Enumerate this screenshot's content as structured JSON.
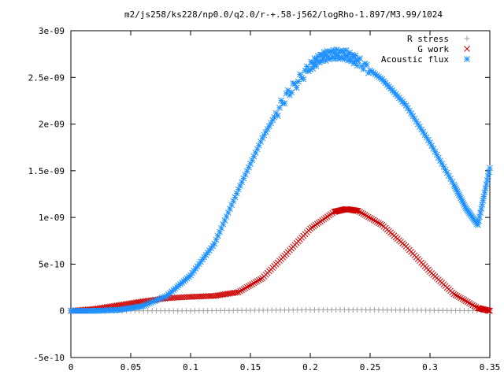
{
  "chart_data": {
    "type": "scatter",
    "title": "m2/js258/ks228/np0.0/q2.0/r-+.58-j562/logRho-1.897/M3.99/1024",
    "xlabel": "",
    "ylabel": "",
    "xlim": [
      0,
      0.35
    ],
    "ylim": [
      -5e-10,
      3e-09
    ],
    "x_ticks": [
      0,
      0.05,
      0.1,
      0.15,
      0.2,
      0.25,
      0.3,
      0.35
    ],
    "x_tick_labels": [
      "0",
      "0.05",
      "0.1",
      "0.15",
      "0.2",
      "0.25",
      "0.3",
      "0.35"
    ],
    "y_ticks": [
      -5e-10,
      0,
      5e-10,
      1e-09,
      1.5e-09,
      2e-09,
      2.5e-09,
      3e-09
    ],
    "y_tick_labels": [
      "-5e-10",
      "0",
      "5e-10",
      "1e-09",
      "1.5e-09",
      "2e-09",
      "2.5e-09",
      "3e-09"
    ],
    "grid": false,
    "legend_position": "top-right",
    "series": [
      {
        "name": "R stress",
        "marker": "plus",
        "color": "#a0a0a0",
        "x": [
          0,
          0.05,
          0.1,
          0.15,
          0.2,
          0.25,
          0.3,
          0.35
        ],
        "y": [
          0,
          0,
          0,
          5e-12,
          1e-11,
          1e-11,
          5e-12,
          0
        ]
      },
      {
        "name": "G work",
        "marker": "cross",
        "color": "#cc0000",
        "x": [
          0,
          0.02,
          0.04,
          0.06,
          0.08,
          0.1,
          0.12,
          0.14,
          0.16,
          0.18,
          0.2,
          0.22,
          0.23,
          0.24,
          0.26,
          0.28,
          0.3,
          0.32,
          0.34,
          0.35
        ],
        "y": [
          0,
          2e-11,
          6e-11,
          1e-10,
          1.35e-10,
          1.5e-10,
          1.6e-10,
          2e-10,
          3.5e-10,
          6.1e-10,
          8.8e-10,
          1.06e-09,
          1.09e-09,
          1.07e-09,
          9.2e-10,
          6.9e-10,
          4.2e-10,
          1.8e-10,
          3e-11,
          0
        ]
      },
      {
        "name": "Acoustic flux",
        "marker": "star",
        "color": "#1e90ff",
        "x": [
          0,
          0.02,
          0.04,
          0.06,
          0.08,
          0.1,
          0.12,
          0.14,
          0.16,
          0.18,
          0.2,
          0.21,
          0.22,
          0.23,
          0.24,
          0.26,
          0.28,
          0.3,
          0.32,
          0.33,
          0.34,
          0.35
        ],
        "y": [
          0,
          0,
          1e-11,
          5e-11,
          1.6e-10,
          3.8e-10,
          7.2e-10,
          1.3e-09,
          1.85e-09,
          2.3e-09,
          2.62e-09,
          2.72e-09,
          2.75e-09,
          2.74e-09,
          2.67e-09,
          2.48e-09,
          2.2e-09,
          1.8e-09,
          1.35e-09,
          1.1e-09,
          9.2e-10,
          1.53e-09
        ]
      }
    ]
  }
}
